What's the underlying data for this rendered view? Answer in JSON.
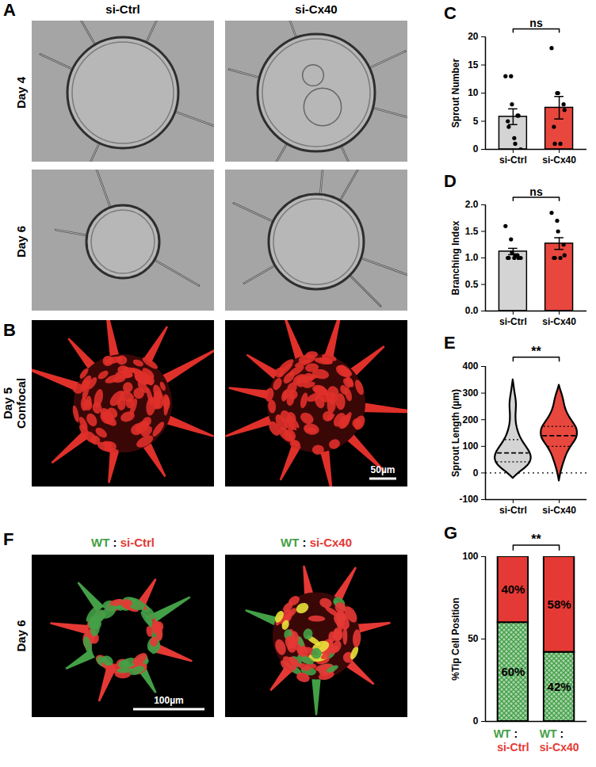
{
  "images": [
    {
      "panel": "A",
      "type": "brightfield",
      "columns": [
        "si-Ctrl",
        "si-Cx40"
      ],
      "rows": [
        "Day 4",
        "Day 6"
      ]
    },
    {
      "panel": "B",
      "type": "confocal",
      "rows": [
        "Day 5 Confocal"
      ],
      "scale_bar": "50µm"
    },
    {
      "panel": "F",
      "type": "fluorescence",
      "columns": [
        [
          "WT",
          ":",
          "si-Ctrl"
        ],
        [
          "WT",
          ":",
          "si-Cx40"
        ]
      ],
      "part_colors": [
        "#43a047",
        "#000000",
        "#e53935"
      ],
      "rows": [
        "Day 6"
      ],
      "scale_bar": "100µm"
    }
  ],
  "chart_data": [
    {
      "panel": "C",
      "type": "bar",
      "categories": [
        "si-Ctrl",
        "si-Cx40"
      ],
      "colors": [
        "#d4d4d4",
        "#e8473e"
      ],
      "values": [
        5.8,
        7.4
      ],
      "errors": [
        1.4,
        2.0
      ],
      "points": [
        [
          13,
          13,
          8,
          6,
          6,
          5,
          4,
          2,
          1,
          0
        ],
        [
          18,
          10,
          10,
          8,
          7,
          4,
          1,
          1
        ]
      ],
      "ylabel": "Sprout Number",
      "ylim": [
        0,
        20
      ],
      "yticks": [
        0,
        5,
        10,
        15,
        20
      ],
      "annotations": [
        {
          "text": "ns",
          "between": [
            0,
            1
          ]
        }
      ]
    },
    {
      "panel": "D",
      "type": "bar",
      "categories": [
        "si-Ctrl",
        "si-Cx40"
      ],
      "colors": [
        "#d4d4d4",
        "#e8473e"
      ],
      "values": [
        1.12,
        1.27
      ],
      "errors": [
        0.06,
        0.11
      ],
      "points": [
        [
          1.6,
          1.35,
          1.1,
          1.05,
          1.0,
          1.0,
          1.0,
          1.0,
          1.05,
          1.0
        ],
        [
          1.85,
          1.7,
          1.5,
          1.25,
          1.05,
          1.0,
          1.0,
          1.0
        ]
      ],
      "ylabel": "Branching Index",
      "ylim": [
        0,
        2
      ],
      "yticks": [
        {
          "value": 0,
          "label": "0.0"
        },
        {
          "value": 0.5,
          "label": "0.5"
        },
        {
          "value": 1,
          "label": "1.0"
        },
        {
          "value": 1.5,
          "label": "1.5"
        },
        {
          "value": 2,
          "label": "2.0"
        }
      ],
      "annotations": [
        {
          "text": "ns",
          "between": [
            0,
            1
          ]
        }
      ]
    },
    {
      "panel": "E",
      "type": "violin",
      "categories": [
        "si-Ctrl",
        "si-Cx40"
      ],
      "colors": [
        "#d4d4d4",
        "#e8473e"
      ],
      "violins": [
        {
          "y": [
            -20,
            0,
            20,
            40,
            60,
            80,
            100,
            120,
            140,
            160,
            180,
            200,
            220,
            240,
            260,
            280,
            300,
            320,
            340,
            350
          ],
          "density": [
            0,
            0.3,
            0.7,
            0.95,
            1,
            0.9,
            0.7,
            0.5,
            0.35,
            0.25,
            0.18,
            0.15,
            0.15,
            0.17,
            0.18,
            0.15,
            0.1,
            0.06,
            0.02,
            0
          ],
          "quartiles": [
            42,
            75,
            125
          ]
        },
        {
          "y": [
            -30,
            -10,
            10,
            30,
            50,
            70,
            90,
            110,
            130,
            150,
            170,
            190,
            210,
            230,
            250,
            270,
            290,
            310,
            330
          ],
          "density": [
            0,
            0.05,
            0.12,
            0.2,
            0.3,
            0.4,
            0.55,
            0.75,
            0.95,
            1,
            0.95,
            0.75,
            0.55,
            0.4,
            0.3,
            0.25,
            0.18,
            0.08,
            0
          ],
          "quartiles": [
            100,
            140,
            175
          ]
        }
      ],
      "reference_lines": [
        0
      ],
      "ylabel": "Sprout Length (µm)",
      "ylim": [
        -100,
        400
      ],
      "yticks": [
        -100,
        0,
        100,
        200,
        300,
        400
      ],
      "annotations": [
        {
          "text": "**",
          "between": [
            0,
            1
          ]
        }
      ]
    },
    {
      "panel": "G",
      "type": "bar",
      "stacked": true,
      "data_labels": true,
      "categories": [
        [
          "WT",
          ":",
          "si-Ctrl"
        ],
        [
          "WT",
          ":",
          "si-Cx40"
        ]
      ],
      "series": [
        {
          "color": "#43a047",
          "values": [
            60,
            42
          ],
          "value_labels": [
            "60%",
            "42%"
          ]
        },
        {
          "color": "#e53935",
          "values": [
            40,
            58
          ],
          "value_labels": [
            "40%",
            "58%"
          ]
        }
      ],
      "ylabel": "%Tip Cell Position",
      "ylim": [
        0,
        100
      ],
      "yticks": [
        0,
        50,
        100
      ],
      "annotations": [
        {
          "text": "**",
          "between": [
            0,
            1
          ]
        }
      ]
    }
  ]
}
